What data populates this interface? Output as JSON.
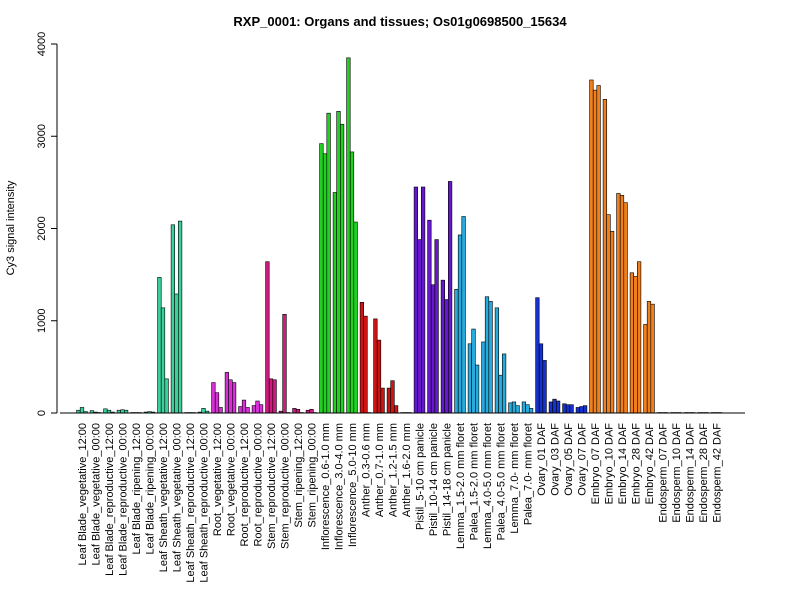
{
  "chart_data": {
    "type": "bar",
    "title": "RXP_0001: Organs and tissues; Os01g0698500_15634",
    "xlabel": "",
    "ylabel": "Cy3 signal intensity",
    "ylim": [
      0,
      4000
    ],
    "yticks": [
      0,
      1000,
      2000,
      3000,
      4000
    ],
    "grid": false,
    "groups": [
      {
        "label": "Leaf Blade_vegetative_12:00",
        "color": "#3bd09a",
        "values": [
          30,
          60,
          15
        ]
      },
      {
        "label": "Leaf Blade_vegetative_00:00",
        "color": "#3bd09a",
        "values": [
          25,
          10,
          5
        ]
      },
      {
        "label": "Leaf Blade_reproductive_12:00",
        "color": "#3bd09a",
        "values": [
          45,
          30,
          10
        ]
      },
      {
        "label": "Leaf Blade_reproductive_00:00",
        "color": "#3bd09a",
        "values": [
          30,
          35,
          30
        ]
      },
      {
        "label": "Leaf Blade_ripening_12:00",
        "color": "#3bd09a",
        "values": [
          5,
          5,
          5
        ]
      },
      {
        "label": "Leaf Blade_ripening_00:00",
        "color": "#3bd09a",
        "values": [
          10,
          15,
          10
        ]
      },
      {
        "label": "Leaf Sheath_vegetative_12:00",
        "color": "#3bd09a",
        "values": [
          1470,
          1140,
          370
        ]
      },
      {
        "label": "Leaf Sheath_vegetative_00:00",
        "color": "#3bd09a",
        "values": [
          2040,
          1290,
          2080
        ]
      },
      {
        "label": "Leaf Sheath_reproductive_12:00",
        "color": "#3bd09a",
        "values": [
          5,
          5,
          5
        ]
      },
      {
        "label": "Leaf Sheath_reproductive_00:00",
        "color": "#3bd09a",
        "values": [
          10,
          50,
          20
        ]
      },
      {
        "label": "Root_vegetative_12:00",
        "color": "#d631d6",
        "values": [
          330,
          220,
          60
        ]
      },
      {
        "label": "Root_vegetative_00:00",
        "color": "#d631d6",
        "values": [
          440,
          360,
          330
        ]
      },
      {
        "label": "Root_reproductive_12:00",
        "color": "#d631d6",
        "values": [
          70,
          140,
          60
        ]
      },
      {
        "label": "Root_reproductive_00:00",
        "color": "#d631d6",
        "values": [
          80,
          130,
          90
        ]
      },
      {
        "label": "Stem_reproductive_12:00",
        "color": "#cc1a7f",
        "values": [
          1640,
          370,
          360
        ]
      },
      {
        "label": "Stem_reproductive_00:00",
        "color": "#cc1a7f",
        "values": [
          20,
          1070,
          5
        ]
      },
      {
        "label": "Stem_ripening_12:00",
        "color": "#cc1a7f",
        "values": [
          50,
          40,
          5
        ]
      },
      {
        "label": "Stem_ripening_00:00",
        "color": "#cc1a7f",
        "values": [
          30,
          40,
          5
        ]
      },
      {
        "label": "Inflorescence_0.6-1.0 mm",
        "color": "#22d022",
        "values": [
          2920,
          2810,
          3250
        ]
      },
      {
        "label": "Inflorescence_3.0-4.0 mm",
        "color": "#22d022",
        "values": [
          2390,
          3270,
          3130
        ]
      },
      {
        "label": "Inflorescence_5.0-10 mm",
        "color": "#22d022",
        "values": [
          3850,
          2830,
          2070
        ]
      },
      {
        "label": "Anther_0.3-0.6 mm",
        "color": "#cc1414",
        "values": [
          1200,
          1050,
          5
        ]
      },
      {
        "label": "Anther_0.7-1.0 mm",
        "color": "#cc1414",
        "values": [
          1020,
          790,
          270
        ]
      },
      {
        "label": "Anther_1.2-1.5 mm",
        "color": "#cc1414",
        "values": [
          270,
          350,
          80
        ]
      },
      {
        "label": "Anther_1.6-2.0 mm",
        "color": "#cc1414",
        "values": [
          5,
          5,
          5
        ]
      },
      {
        "label": "Pistil_5-10 cm panicle",
        "color": "#6619cc",
        "values": [
          2450,
          1880,
          2450
        ]
      },
      {
        "label": "Pistil_10-14 cm panicle",
        "color": "#6619cc",
        "values": [
          2090,
          1390,
          1880
        ]
      },
      {
        "label": "Pistil_14-18 cm panicle",
        "color": "#6619cc",
        "values": [
          1440,
          1230,
          2510
        ]
      },
      {
        "label": "Lemma_1.5-2.0 mm floret",
        "color": "#28aadc",
        "values": [
          1340,
          1930,
          2130
        ]
      },
      {
        "label": "Palea_1.5-2.0 mm floret",
        "color": "#28aadc",
        "values": [
          750,
          910,
          520
        ]
      },
      {
        "label": "Lemma_4.0-5.0 mm floret",
        "color": "#28aadc",
        "values": [
          770,
          1260,
          1210
        ]
      },
      {
        "label": "Palea_4.0-5.0 mm floret",
        "color": "#28aadc",
        "values": [
          1140,
          410,
          640
        ]
      },
      {
        "label": "Lemma_7.0- mm floret",
        "color": "#28aadc",
        "values": [
          110,
          120,
          80
        ]
      },
      {
        "label": "Palea_7.0- mm floret",
        "color": "#28aadc",
        "values": [
          120,
          90,
          50
        ]
      },
      {
        "label": "Ovary_01 DAF",
        "color": "#1632cc",
        "values": [
          1250,
          750,
          570
        ]
      },
      {
        "label": "Ovary_03 DAF",
        "color": "#1632cc",
        "values": [
          120,
          150,
          130
        ]
      },
      {
        "label": "Ovary_05 DAF",
        "color": "#1632cc",
        "values": [
          100,
          90,
          90
        ]
      },
      {
        "label": "Ovary_07 DAF",
        "color": "#1632cc",
        "values": [
          60,
          70,
          80
        ]
      },
      {
        "label": "Embryo_07 DAF",
        "color": "#f07f1e",
        "values": [
          3610,
          3500,
          3550
        ]
      },
      {
        "label": "Embryo_10 DAF",
        "color": "#f07f1e",
        "values": [
          3400,
          2150,
          1970
        ]
      },
      {
        "label": "Embryo_14 DAF",
        "color": "#f07f1e",
        "values": [
          2380,
          2360,
          2280
        ]
      },
      {
        "label": "Embryo_28 DAF",
        "color": "#f07f1e",
        "values": [
          1520,
          1480,
          1640
        ]
      },
      {
        "label": "Embryo_42 DAF",
        "color": "#f07f1e",
        "values": [
          960,
          1210,
          1180
        ]
      },
      {
        "label": "Endosperm_07 DAF",
        "color": "#f07f1e",
        "values": [
          5,
          5,
          5
        ]
      },
      {
        "label": "Endosperm_10 DAF",
        "color": "#f07f1e",
        "values": [
          5,
          5,
          5
        ]
      },
      {
        "label": "Endosperm_14 DAF",
        "color": "#f07f1e",
        "values": [
          5,
          5,
          5
        ]
      },
      {
        "label": "Endosperm_28 DAF",
        "color": "#f07f1e",
        "values": [
          5,
          5,
          5
        ]
      },
      {
        "label": "Endosperm_42 DAF",
        "color": "#f07f1e",
        "values": [
          5,
          5,
          5
        ]
      }
    ]
  }
}
